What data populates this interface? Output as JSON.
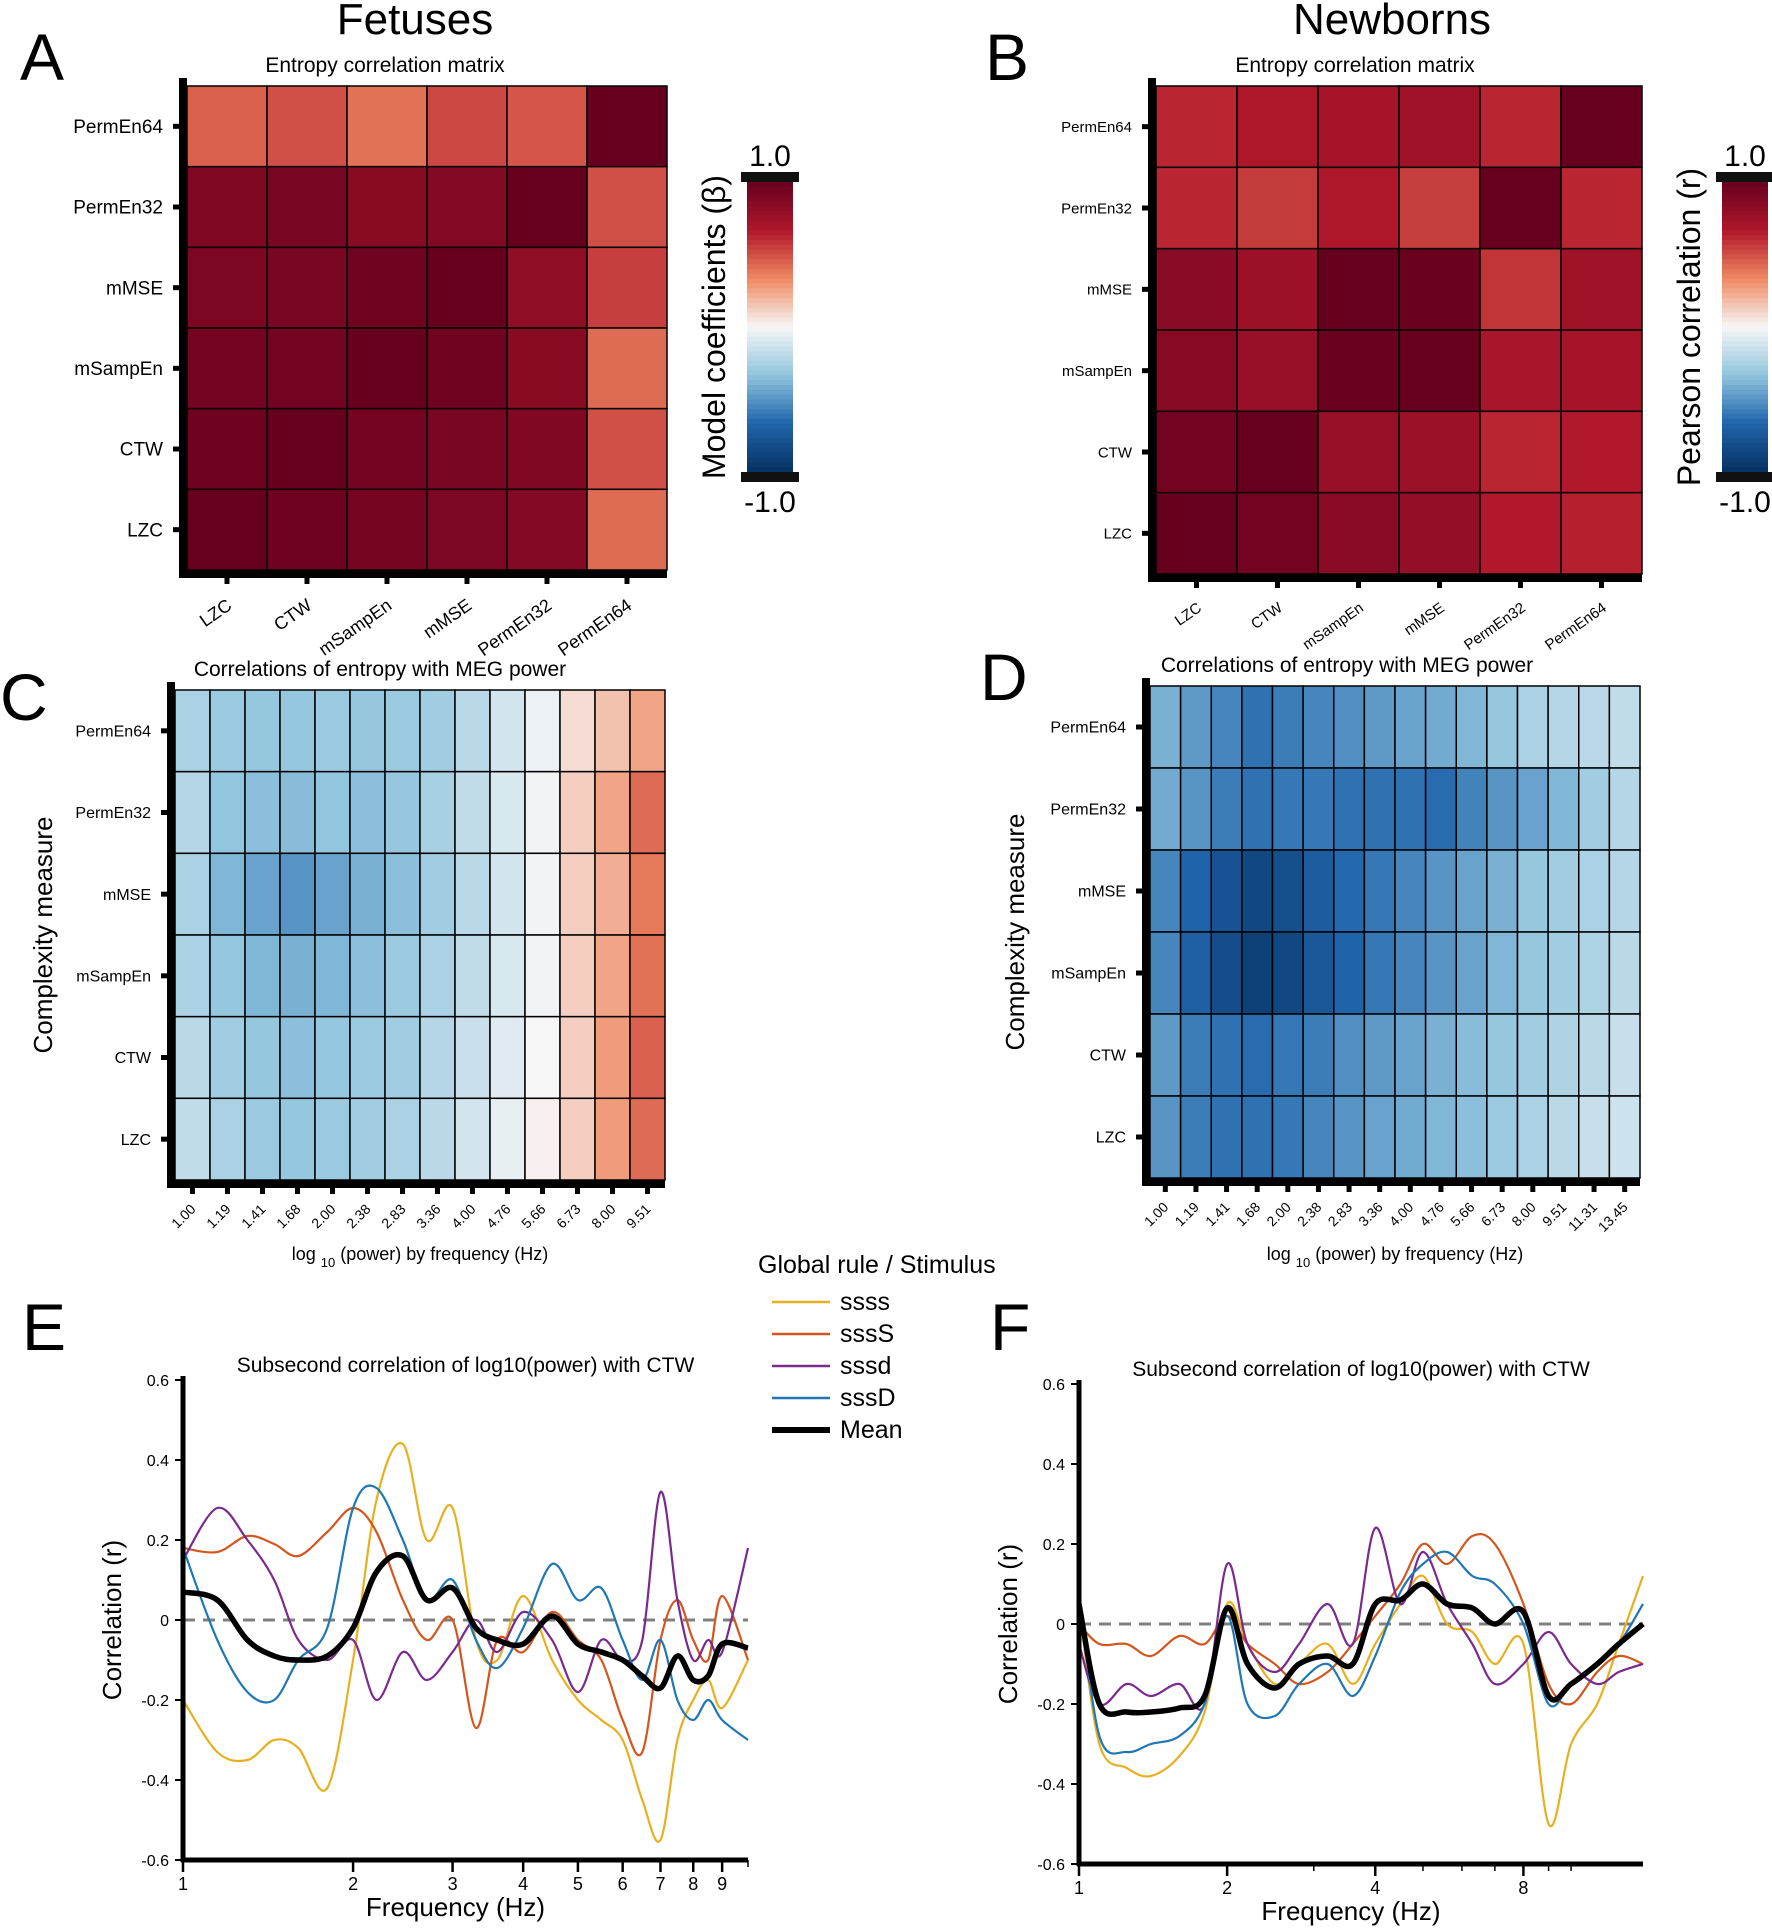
{
  "headers": {
    "left": "Fetuses",
    "right": "Newborns"
  },
  "panel_letters": [
    "A",
    "B",
    "C",
    "D",
    "E",
    "F"
  ],
  "colorbars": [
    {
      "label": "Model coefficients (β)",
      "max": "1.0",
      "min": "-1.0"
    },
    {
      "label": "Pearson correlation (r)",
      "max": "1.0",
      "min": "-1.0"
    }
  ],
  "colors": {
    "dark_red": "#67001f",
    "red": "#b2182b",
    "light_red": "#ef8a62",
    "white": "#f7f7f7",
    "light_blue": "#92c5de",
    "blue": "#2166ac",
    "dark_blue": "#053061",
    "zero_line": "#7f7f7f",
    "mean_line": "#000000"
  },
  "legend": {
    "title": "Global rule / Stimulus",
    "items": [
      {
        "name": "ssss",
        "color": "#e8b020"
      },
      {
        "name": "sssS",
        "color": "#d2561e"
      },
      {
        "name": "sssd",
        "color": "#7a2a8e"
      },
      {
        "name": "sssD",
        "color": "#1f77b4"
      },
      {
        "name": "Mean",
        "color": "#000000"
      }
    ]
  },
  "chart_data": [
    {
      "id": "A",
      "type": "heatmap",
      "title": "Entropy correlation matrix",
      "x_labels": [
        "LZC",
        "CTW",
        "mSampEn",
        "mMSE",
        "PermEn32",
        "PermEn64"
      ],
      "y_labels": [
        "PermEn64",
        "PermEn32",
        "mMSE",
        "mSampEn",
        "CTW",
        "LZC"
      ],
      "value_range": [
        -1,
        1
      ],
      "values": [
        [
          0.45,
          0.5,
          0.4,
          0.52,
          0.48,
          1.0
        ],
        [
          0.88,
          0.92,
          0.85,
          0.87,
          1.0,
          0.5
        ],
        [
          0.9,
          0.92,
          0.96,
          1.0,
          0.82,
          0.55
        ],
        [
          0.94,
          0.95,
          1.0,
          0.96,
          0.85,
          0.42
        ],
        [
          0.97,
          1.0,
          0.94,
          0.92,
          0.88,
          0.5
        ],
        [
          1.0,
          0.97,
          0.93,
          0.9,
          0.87,
          0.42
        ]
      ]
    },
    {
      "id": "B",
      "type": "heatmap",
      "title": "Entropy correlation matrix",
      "x_labels": [
        "LZC",
        "CTW",
        "mSampEn",
        "mMSE",
        "PermEn32",
        "PermEn64"
      ],
      "y_labels": [
        "PermEn64",
        "PermEn32",
        "mMSE",
        "mSampEn",
        "CTW",
        "LZC"
      ],
      "value_range": [
        -1,
        1
      ],
      "values": [
        [
          0.62,
          0.68,
          0.72,
          0.74,
          0.62,
          1.0
        ],
        [
          0.62,
          0.56,
          0.68,
          0.55,
          1.0,
          0.62
        ],
        [
          0.84,
          0.76,
          1.0,
          0.99,
          0.58,
          0.74
        ],
        [
          0.86,
          0.78,
          0.99,
          1.0,
          0.7,
          0.72
        ],
        [
          0.95,
          1.0,
          0.78,
          0.76,
          0.62,
          0.66
        ],
        [
          1.0,
          0.95,
          0.84,
          0.8,
          0.66,
          0.64
        ]
      ]
    },
    {
      "id": "C",
      "type": "heatmap",
      "title": "Correlations of entropy with MEG power",
      "xlabel_main": "log",
      "xlabel_sub": "10",
      "xlabel_rest": "(power) by frequency (Hz)",
      "ylabel": "Complexity measure",
      "x_labels": [
        "1.00",
        "1.19",
        "1.41",
        "1.68",
        "2.00",
        "2.38",
        "2.83",
        "3.36",
        "4.00",
        "4.76",
        "5.66",
        "6.73",
        "8.00",
        "9.51"
      ],
      "y_labels": [
        "PermEn64",
        "PermEn32",
        "mMSE",
        "mSampEn",
        "CTW",
        "LZC"
      ],
      "value_range": [
        -1,
        1
      ],
      "values": [
        [
          -0.25,
          -0.3,
          -0.32,
          -0.32,
          -0.3,
          -0.32,
          -0.3,
          -0.28,
          -0.2,
          -0.12,
          -0.04,
          0.08,
          0.16,
          0.25
        ],
        [
          -0.22,
          -0.33,
          -0.35,
          -0.36,
          -0.33,
          -0.35,
          -0.32,
          -0.26,
          -0.18,
          -0.1,
          -0.02,
          0.12,
          0.25,
          0.42
        ],
        [
          -0.25,
          -0.38,
          -0.45,
          -0.5,
          -0.45,
          -0.4,
          -0.35,
          -0.28,
          -0.2,
          -0.12,
          -0.02,
          0.12,
          0.22,
          0.38
        ],
        [
          -0.25,
          -0.32,
          -0.38,
          -0.4,
          -0.38,
          -0.35,
          -0.3,
          -0.25,
          -0.18,
          -0.1,
          -0.02,
          0.12,
          0.25,
          0.4
        ],
        [
          -0.2,
          -0.28,
          -0.32,
          -0.35,
          -0.32,
          -0.3,
          -0.28,
          -0.22,
          -0.15,
          -0.08,
          0.0,
          0.12,
          0.28,
          0.45
        ],
        [
          -0.18,
          -0.25,
          -0.3,
          -0.32,
          -0.3,
          -0.28,
          -0.25,
          -0.2,
          -0.12,
          -0.05,
          0.02,
          0.12,
          0.28,
          0.42
        ]
      ]
    },
    {
      "id": "D",
      "type": "heatmap",
      "title": "Correlations of entropy with MEG power",
      "xlabel_main": "log",
      "xlabel_sub": "10",
      "xlabel_rest": "(power) by frequency (Hz)",
      "ylabel": "Complexity measure",
      "x_labels": [
        "1.00",
        "1.19",
        "1.41",
        "1.68",
        "2.00",
        "2.38",
        "2.83",
        "3.36",
        "4.00",
        "4.76",
        "5.66",
        "6.73",
        "8.00",
        "9.51",
        "11.31",
        "13.45"
      ],
      "y_labels": [
        "PermEn64",
        "PermEn32",
        "mMSE",
        "mSampEn",
        "CTW",
        "LZC"
      ],
      "value_range": [
        -1,
        1
      ],
      "values": [
        [
          -0.4,
          -0.48,
          -0.55,
          -0.62,
          -0.58,
          -0.55,
          -0.52,
          -0.48,
          -0.45,
          -0.42,
          -0.38,
          -0.32,
          -0.25,
          -0.22,
          -0.2,
          -0.18
        ],
        [
          -0.42,
          -0.5,
          -0.58,
          -0.62,
          -0.6,
          -0.6,
          -0.62,
          -0.62,
          -0.62,
          -0.64,
          -0.56,
          -0.5,
          -0.45,
          -0.38,
          -0.28,
          -0.22
        ],
        [
          -0.55,
          -0.68,
          -0.78,
          -0.85,
          -0.8,
          -0.72,
          -0.65,
          -0.6,
          -0.55,
          -0.5,
          -0.45,
          -0.4,
          -0.32,
          -0.28,
          -0.25,
          -0.22
        ],
        [
          -0.55,
          -0.7,
          -0.82,
          -0.9,
          -0.85,
          -0.75,
          -0.68,
          -0.6,
          -0.55,
          -0.5,
          -0.45,
          -0.38,
          -0.32,
          -0.28,
          -0.24,
          -0.2
        ],
        [
          -0.48,
          -0.58,
          -0.62,
          -0.64,
          -0.6,
          -0.58,
          -0.52,
          -0.48,
          -0.45,
          -0.4,
          -0.36,
          -0.32,
          -0.28,
          -0.24,
          -0.2,
          -0.16
        ],
        [
          -0.5,
          -0.58,
          -0.62,
          -0.62,
          -0.6,
          -0.55,
          -0.5,
          -0.45,
          -0.42,
          -0.38,
          -0.35,
          -0.3,
          -0.25,
          -0.2,
          -0.16,
          -0.14
        ]
      ]
    },
    {
      "id": "E",
      "type": "line",
      "title": "Subsecond correlation of log10(power) with CTW",
      "xlabel": "Frequency (Hz)",
      "ylabel": "Correlation (r)",
      "xscale": "log",
      "xlim": [
        1,
        10
      ],
      "ylim": [
        -0.6,
        0.6
      ],
      "x_ticks": [
        1,
        2,
        3,
        4,
        5,
        6,
        7,
        8,
        9
      ],
      "y_ticks": [
        -0.6,
        -0.4,
        -0.2,
        0,
        0.2,
        0.4,
        0.6
      ],
      "x": [
        1.0,
        1.15,
        1.3,
        1.45,
        1.6,
        1.8,
        2.0,
        2.2,
        2.45,
        2.7,
        3.0,
        3.3,
        3.6,
        4.0,
        4.5,
        5.0,
        5.5,
        6.0,
        6.5,
        7.0,
        7.5,
        8.0,
        8.5,
        9.0,
        10.0
      ],
      "series": [
        {
          "name": "ssss",
          "values": [
            -0.2,
            -0.33,
            -0.35,
            -0.3,
            -0.32,
            -0.42,
            -0.1,
            0.3,
            0.44,
            0.2,
            0.28,
            -0.05,
            -0.1,
            0.06,
            -0.1,
            -0.2,
            -0.25,
            -0.3,
            -0.45,
            -0.55,
            -0.3,
            -0.2,
            -0.15,
            -0.22,
            -0.1
          ]
        },
        {
          "name": "sssS",
          "values": [
            0.18,
            0.17,
            0.21,
            0.19,
            0.16,
            0.22,
            0.28,
            0.22,
            0.05,
            -0.05,
            0.0,
            -0.27,
            -0.05,
            -0.08,
            0.02,
            -0.05,
            -0.1,
            -0.25,
            -0.33,
            -0.05,
            0.05,
            -0.05,
            -0.1,
            0.06,
            -0.1
          ]
        },
        {
          "name": "sssd",
          "values": [
            0.15,
            0.28,
            0.2,
            0.1,
            -0.05,
            -0.1,
            -0.05,
            -0.2,
            -0.08,
            -0.15,
            -0.08,
            0.0,
            -0.08,
            0.02,
            -0.05,
            -0.18,
            -0.05,
            -0.1,
            -0.05,
            0.32,
            0.05,
            -0.1,
            -0.05,
            -0.08,
            0.18
          ]
        },
        {
          "name": "sssD",
          "values": [
            0.18,
            -0.05,
            -0.18,
            -0.2,
            -0.1,
            -0.02,
            0.28,
            0.33,
            0.2,
            0.05,
            0.1,
            -0.05,
            -0.12,
            -0.02,
            0.14,
            0.05,
            0.08,
            -0.05,
            -0.15,
            -0.05,
            -0.2,
            -0.25,
            -0.2,
            -0.25,
            -0.3
          ]
        },
        {
          "name": "Mean",
          "values": [
            0.07,
            0.05,
            -0.05,
            -0.09,
            -0.1,
            -0.09,
            -0.02,
            0.12,
            0.16,
            0.05,
            0.08,
            -0.02,
            -0.05,
            -0.06,
            0.01,
            -0.06,
            -0.08,
            -0.1,
            -0.14,
            -0.17,
            -0.09,
            -0.15,
            -0.14,
            -0.06,
            -0.07
          ]
        }
      ]
    },
    {
      "id": "F",
      "type": "line",
      "title": "Subsecond correlation of log10(power) with CTW",
      "xlabel": "Frequency (Hz)",
      "ylabel": "Correlation (r)",
      "xscale": "log",
      "xlim": [
        1,
        14
      ],
      "ylim": [
        -0.6,
        0.6
      ],
      "x_ticks": [
        1,
        2,
        4,
        8
      ],
      "y_ticks": [
        -0.6,
        -0.4,
        -0.2,
        0,
        0.2,
        0.4,
        0.6
      ],
      "x": [
        1.0,
        1.1,
        1.25,
        1.4,
        1.6,
        1.8,
        2.0,
        2.2,
        2.5,
        2.8,
        3.2,
        3.6,
        4.0,
        4.5,
        5.0,
        5.6,
        6.3,
        7.0,
        8.0,
        9.0,
        10.0,
        11.3,
        12.5,
        14.0
      ],
      "series": [
        {
          "name": "ssss",
          "values": [
            0.05,
            -0.3,
            -0.36,
            -0.38,
            -0.33,
            -0.22,
            0.05,
            -0.05,
            -0.15,
            -0.1,
            -0.05,
            -0.15,
            -0.05,
            0.05,
            0.12,
            0.0,
            -0.02,
            -0.1,
            -0.05,
            -0.5,
            -0.3,
            -0.2,
            -0.05,
            0.12
          ]
        },
        {
          "name": "sssS",
          "values": [
            0.0,
            -0.05,
            -0.05,
            -0.08,
            -0.03,
            -0.05,
            0.02,
            -0.05,
            -0.1,
            -0.15,
            -0.12,
            -0.05,
            0.02,
            0.1,
            0.2,
            0.15,
            0.22,
            0.2,
            0.05,
            -0.15,
            -0.2,
            -0.12,
            -0.08,
            -0.1
          ]
        },
        {
          "name": "sssd",
          "values": [
            -0.05,
            -0.2,
            -0.15,
            -0.18,
            -0.15,
            -0.2,
            0.15,
            -0.05,
            -0.12,
            -0.05,
            0.05,
            -0.05,
            0.24,
            0.05,
            0.18,
            0.05,
            -0.05,
            -0.15,
            -0.1,
            -0.02,
            -0.1,
            -0.15,
            -0.12,
            -0.1
          ]
        },
        {
          "name": "sssD",
          "values": [
            0.08,
            -0.28,
            -0.32,
            -0.3,
            -0.28,
            -0.2,
            0.02,
            -0.2,
            -0.23,
            -0.15,
            -0.1,
            -0.18,
            -0.08,
            0.08,
            0.15,
            0.18,
            0.12,
            0.1,
            0.0,
            -0.2,
            -0.15,
            -0.1,
            -0.05,
            0.05
          ]
        },
        {
          "name": "Mean",
          "values": [
            0.05,
            -0.2,
            -0.22,
            -0.22,
            -0.21,
            -0.18,
            0.04,
            -0.1,
            -0.16,
            -0.1,
            -0.08,
            -0.1,
            0.05,
            0.06,
            0.1,
            0.05,
            0.04,
            0.0,
            0.03,
            -0.18,
            -0.15,
            -0.1,
            -0.05,
            0.0
          ]
        }
      ]
    }
  ]
}
